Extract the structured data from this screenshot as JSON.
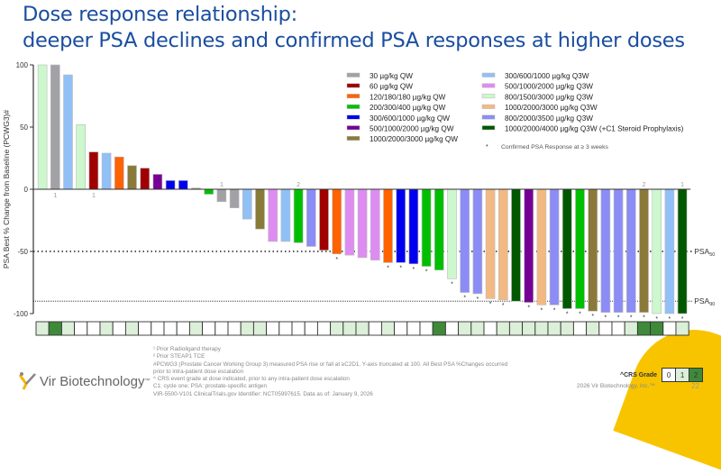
{
  "title": {
    "line1": "Dose response relationship:",
    "line2": "deeper PSA declines and confirmed PSA responses at higher doses"
  },
  "chart_data": {
    "type": "bar",
    "ylabel": "PSA Best % Change from Baseline (PCWG3)#",
    "ylim": [
      -100,
      100
    ],
    "yticks": [
      "100",
      "50",
      "0",
      "-50",
      "-100"
    ],
    "ytick_values": [
      100,
      50,
      0,
      -50,
      -100
    ],
    "reference_lines": [
      {
        "label": "PSA",
        "sub": "50",
        "value": -50
      },
      {
        "label": "PSA",
        "sub": "90",
        "value": -90
      }
    ],
    "legend": [
      {
        "label": "30 µg/kg QW",
        "color": "#a2a2a6"
      },
      {
        "label": "60 µg/kg QW",
        "color": "#a00000"
      },
      {
        "label": "120/180/180 µg/kg QW",
        "color": "#ff6200"
      },
      {
        "label": "200/300/400 µg/kg QW",
        "color": "#00bf00"
      },
      {
        "label": "300/600/1000 µg/kg QW",
        "color": "#0000f0"
      },
      {
        "label": "500/1000/2000 µg/kg QW",
        "color": "#760096"
      },
      {
        "label": "1000/2000/3000 µg/kg QW",
        "color": "#8a7a3a"
      },
      {
        "label": "300/600/1000 µg/kg Q3W",
        "color": "#90c0f6"
      },
      {
        "label": "500/1000/2000 µg/kg Q3W",
        "color": "#df8cf2"
      },
      {
        "label": "800/1500/3000 µg/kg Q3W",
        "color": "#cdf7cd"
      },
      {
        "label": "1000/2000/3000 µg/kg Q3W",
        "color": "#f3b982"
      },
      {
        "label": "800/2000/3500 µg/kg Q3W",
        "color": "#8c8cf6"
      },
      {
        "label": "1000/2000/4000 µg/kg Q3W (+C1 Steroid Prophylaxis)",
        "color": "#005800"
      }
    ],
    "star_legend": "Confirmed PSA Response at ≥ 3 weeks",
    "values": [
      100,
      100,
      92,
      52,
      30,
      29,
      26,
      19,
      17,
      12,
      7,
      7,
      1,
      -4,
      -10,
      -15,
      -24,
      -32,
      -42,
      -42,
      -43,
      -46,
      -49,
      -52,
      -53,
      -55,
      -57,
      -59,
      -59,
      -60,
      -62,
      -65,
      -72,
      -83,
      -84,
      -88,
      -89,
      -90,
      -91,
      -93,
      -93,
      -96,
      -96,
      -98,
      -99,
      -99,
      -99,
      -99,
      -100,
      -100,
      -100
    ],
    "dose_group": [
      9,
      0,
      7,
      9,
      1,
      7,
      2,
      6,
      1,
      5,
      4,
      4,
      0,
      3,
      0,
      0,
      7,
      6,
      8,
      7,
      3,
      11,
      1,
      2,
      8,
      8,
      8,
      2,
      4,
      4,
      3,
      3,
      9,
      11,
      11,
      10,
      10,
      12,
      5,
      10,
      11,
      12,
      3,
      6,
      11,
      11,
      11,
      6,
      9,
      7,
      12
    ],
    "confirmed": [
      0,
      0,
      0,
      0,
      0,
      0,
      0,
      0,
      0,
      0,
      0,
      0,
      0,
      0,
      0,
      0,
      0,
      0,
      0,
      0,
      0,
      0,
      0,
      1,
      0,
      0,
      0,
      1,
      1,
      1,
      1,
      0,
      1,
      1,
      1,
      1,
      1,
      0,
      1,
      1,
      1,
      1,
      1,
      1,
      1,
      1,
      1,
      1,
      1,
      1,
      1
    ],
    "annotations": [
      {
        "bar": 2,
        "text": "1",
        "pos": "below"
      },
      {
        "bar": 5,
        "text": "1",
        "pos": "below"
      },
      {
        "bar": 15,
        "text": "1",
        "pos": "above"
      },
      {
        "bar": 21,
        "text": "2",
        "pos": "above"
      },
      {
        "bar": 48,
        "text": "2",
        "pos": "above"
      },
      {
        "bar": 51,
        "text": "1",
        "pos": "above"
      }
    ],
    "crs_grade": [
      1,
      2,
      1,
      0,
      0,
      1,
      0,
      1,
      0,
      0,
      0,
      0,
      1,
      0,
      0,
      0,
      1,
      1,
      0,
      0,
      0,
      0,
      0,
      1,
      1,
      1,
      0,
      1,
      0,
      0,
      0,
      2,
      0,
      1,
      1,
      0,
      1,
      1,
      1,
      1,
      1,
      1,
      0,
      1,
      0,
      0,
      1,
      2,
      2,
      0,
      1
    ],
    "crs_colors": [
      "#ffffff",
      "#dcefd8",
      "#3f8a3a"
    ]
  },
  "crs_legend": {
    "label": "^CRS Grade",
    "grades": [
      "0",
      "1",
      "2"
    ]
  },
  "footnotes": [
    "¹ Prior Radioligand therapy",
    "² Prior STEAP1 TCE",
    "#PCWG3 (Prostate Cancer Working Group 3) measured PSA rise or fall at ≥C2D1. Y-axis truncated at 100. All Best PSA %Changes occurred",
    "prior to intra-patient dose escalation",
    "^ CRS event grade at dose indicated, prior to any intra-patient dose escalation",
    "C1: cycle one; PSA: prostate-specific antigen",
    "VIR-5500-V101 ClinicalTrials.gov Identifier: NCT05997615. Data as of: January 9, 2026"
  ],
  "logo_text": "Vir Biotechnology",
  "tm": "™",
  "copyright": "2026 Vir Biotechnology, Inc.™",
  "page_number": "22"
}
